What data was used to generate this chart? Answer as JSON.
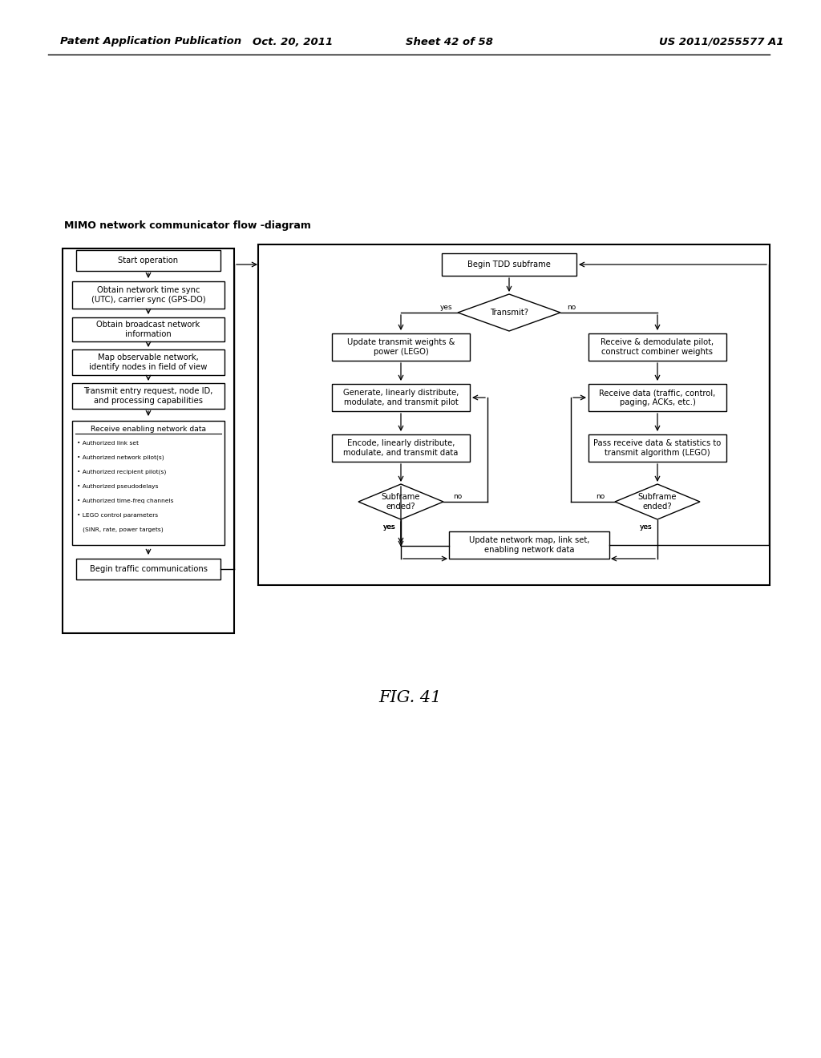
{
  "title_header": "Patent Application Publication",
  "date_header": "Oct. 20, 2011",
  "sheet_header": "Sheet 42 of 58",
  "patent_header": "US 2011/0255577 A1",
  "diagram_label": "MIMO network communicator flow -diagram",
  "fig_label": "FIG. 41",
  "bg_color": "#ffffff",
  "box_fc": "#ffffff",
  "box_ec": "#000000",
  "text_color": "#000000",
  "fs": 7.2,
  "fs_header": 9.5,
  "fs_fig": 15
}
